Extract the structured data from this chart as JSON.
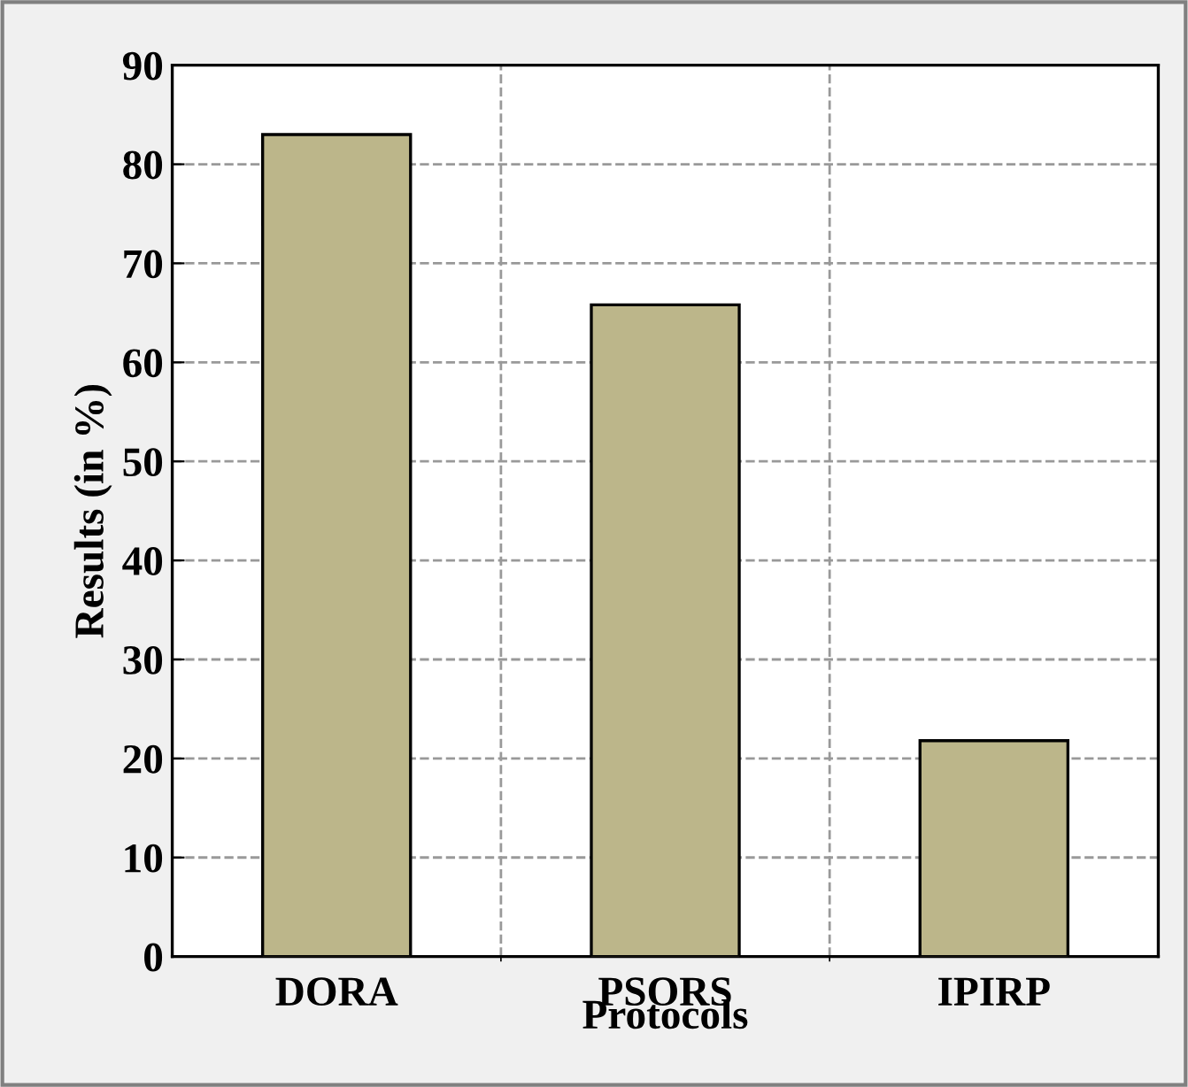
{
  "chart_data": {
    "type": "bar",
    "xlabel": "Protocols",
    "ylabel": "Results (in %)",
    "categories": [
      "DORA",
      "PSORS",
      "IPIRP"
    ],
    "values": [
      83,
      65.8,
      21.8
    ],
    "color": "#bcb68a",
    "ylim": [
      0,
      90
    ],
    "yticks": [
      0,
      10,
      20,
      30,
      40,
      50,
      60,
      70,
      80,
      90
    ],
    "grid": true
  }
}
